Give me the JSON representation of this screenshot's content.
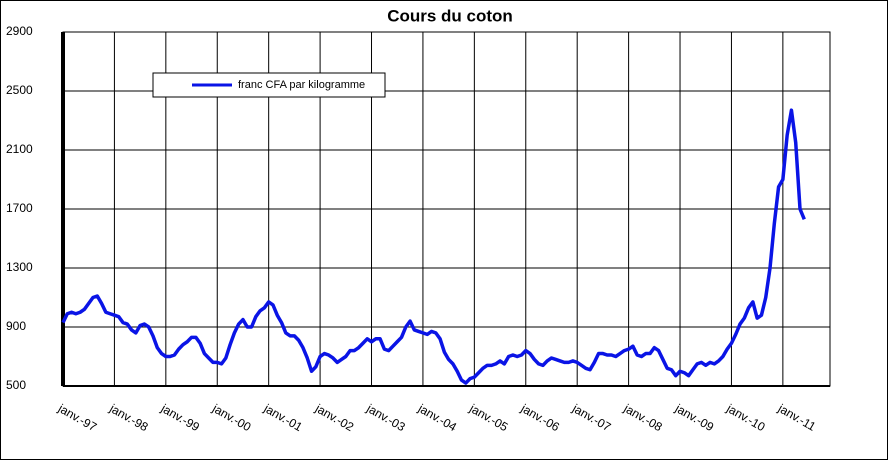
{
  "chart_data": {
    "type": "line",
    "title": "Cours du coton",
    "categories": [
      "janv.-97",
      null,
      null,
      null,
      null,
      null,
      null,
      null,
      null,
      null,
      null,
      null,
      "janv.-98",
      null,
      null,
      null,
      null,
      null,
      null,
      null,
      null,
      null,
      null,
      null,
      "janv.-99",
      null,
      null,
      null,
      null,
      null,
      null,
      null,
      null,
      null,
      null,
      null,
      "janv.-00",
      null,
      null,
      null,
      null,
      null,
      null,
      null,
      null,
      null,
      null,
      null,
      "janv.-01",
      null,
      null,
      null,
      null,
      null,
      null,
      null,
      null,
      null,
      null,
      null,
      "janv.-02",
      null,
      null,
      null,
      null,
      null,
      null,
      null,
      null,
      null,
      null,
      null,
      "janv.-03",
      null,
      null,
      null,
      null,
      null,
      null,
      null,
      null,
      null,
      null,
      null,
      "janv.-04",
      null,
      null,
      null,
      null,
      null,
      null,
      null,
      null,
      null,
      null,
      null,
      "janv.-05",
      null,
      null,
      null,
      null,
      null,
      null,
      null,
      null,
      null,
      null,
      null,
      "janv.-06",
      null,
      null,
      null,
      null,
      null,
      null,
      null,
      null,
      null,
      null,
      null,
      "janv.-07",
      null,
      null,
      null,
      null,
      null,
      null,
      null,
      null,
      null,
      null,
      null,
      "janv.-08",
      null,
      null,
      null,
      null,
      null,
      null,
      null,
      null,
      null,
      null,
      null,
      "janv.-09",
      null,
      null,
      null,
      null,
      null,
      null,
      null,
      null,
      null,
      null,
      null,
      "janv.-10",
      null,
      null,
      null,
      null,
      null,
      null,
      null,
      null,
      null,
      null,
      null,
      "janv.-11",
      null,
      null,
      null,
      null,
      null,
      null,
      null,
      null,
      null,
      null,
      null
    ],
    "series": [
      {
        "name": "franc CFA par kilogramme",
        "color": "#0a14e6",
        "values": [
          930,
          990,
          1000,
          990,
          1000,
          1020,
          1060,
          1100,
          1110,
          1060,
          1000,
          990,
          980,
          970,
          930,
          920,
          880,
          860,
          910,
          920,
          900,
          840,
          760,
          720,
          700,
          700,
          710,
          750,
          780,
          800,
          830,
          830,
          790,
          720,
          690,
          660,
          660,
          650,
          690,
          780,
          860,
          920,
          950,
          900,
          900,
          970,
          1010,
          1030,
          1070,
          1050,
          980,
          930,
          860,
          840,
          840,
          810,
          760,
          690,
          600,
          630,
          700,
          720,
          710,
          690,
          660,
          680,
          700,
          740,
          740,
          760,
          790,
          820,
          800,
          820,
          820,
          750,
          740,
          770,
          800,
          830,
          900,
          940,
          880,
          870,
          860,
          850,
          870,
          860,
          820,
          730,
          680,
          650,
          600,
          540,
          520,
          550,
          560,
          590,
          620,
          640,
          640,
          650,
          670,
          650,
          700,
          710,
          700,
          710,
          740,
          720,
          680,
          650,
          640,
          670,
          690,
          680,
          670,
          660,
          660,
          670,
          660,
          640,
          620,
          610,
          660,
          720,
          720,
          710,
          710,
          700,
          720,
          740,
          750,
          770,
          710,
          700,
          720,
          720,
          760,
          740,
          680,
          620,
          610,
          570,
          600,
          590,
          570,
          610,
          650,
          660,
          640,
          660,
          650,
          670,
          700,
          750,
          790,
          850,
          920,
          960,
          1030,
          1070,
          960,
          980,
          1100,
          1300,
          1600,
          1850,
          1900,
          2200,
          2370,
          2150,
          1700,
          1630,
          null,
          null,
          null,
          null,
          null,
          null
        ]
      }
    ],
    "ylim": [
      500,
      2900
    ],
    "yticks": [
      500,
      900,
      1300,
      1700,
      2100,
      2500,
      2900
    ],
    "grid": true
  }
}
